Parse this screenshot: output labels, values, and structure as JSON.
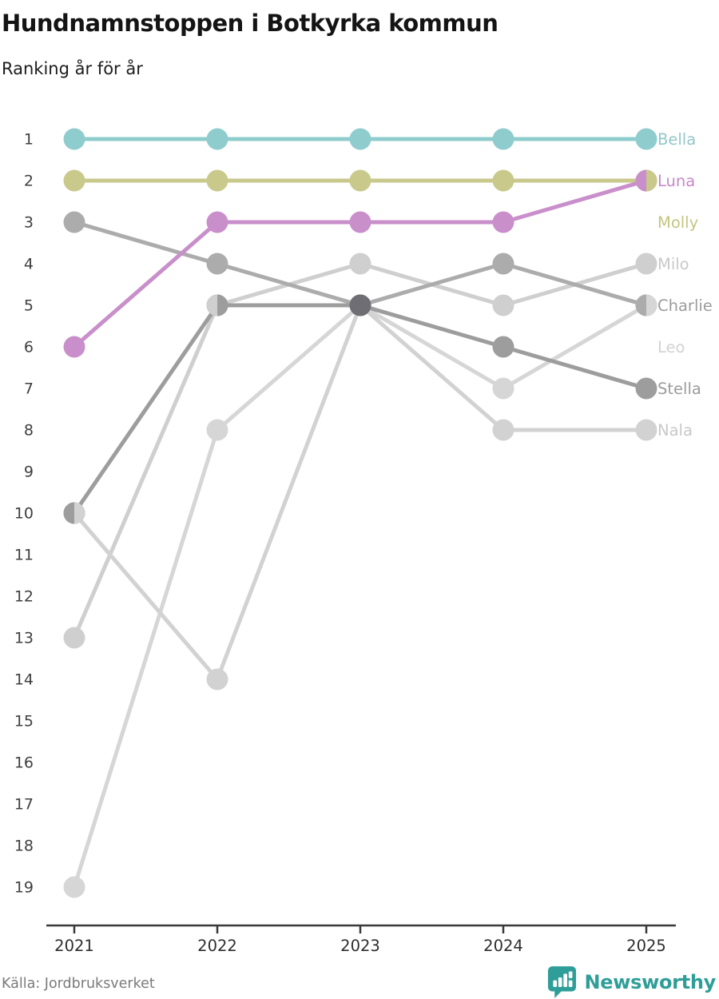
{
  "header": {
    "title": "Hundnamnstoppen i Botkyrka kommun",
    "subtitle": "Ranking år för år"
  },
  "footer": {
    "source": "Källa: Jordbruksverket",
    "brand": "Newsworthy",
    "brand_color": "#2f9e99"
  },
  "chart_data": {
    "type": "line",
    "subtype": "bump-ranking",
    "x": [
      2021,
      2022,
      2023,
      2024,
      2025
    ],
    "y_axis": {
      "ticks": [
        1,
        2,
        3,
        4,
        5,
        6,
        7,
        8,
        9,
        10,
        11,
        12,
        13,
        14,
        15,
        16,
        17,
        18,
        19
      ],
      "inverted": true,
      "range": [
        1,
        19
      ]
    },
    "axis_color": "#3a3a3a",
    "tick_label_color": "#3f3f3f",
    "year_label_color": "#2e2e2e",
    "grid": false,
    "legend_position": "right-of-last-point",
    "series": [
      {
        "name": "Milo",
        "color": "#cfcfcf",
        "label_color": "#c9c9c9",
        "label_row": 4,
        "values": [
          13,
          5,
          4,
          5,
          4
        ]
      },
      {
        "name": "Leo",
        "color": "#d6d6d6",
        "label_color": "#d2d2d2",
        "label_row": 6,
        "values": [
          19,
          8,
          5,
          7,
          5
        ]
      },
      {
        "name": "Nala",
        "color": "#d2d2d2",
        "label_color": "#c9c9c9",
        "label_row": 8,
        "values": [
          10,
          14,
          5,
          8,
          8
        ]
      },
      {
        "name": "Charlie",
        "color": "#acacac",
        "label_color": "#9c9c9c",
        "label_row": 5,
        "values": [
          3,
          4,
          5,
          4,
          5
        ]
      },
      {
        "name": "Stella",
        "color": "#9d9d9d",
        "label_color": "#9c9c9c",
        "label_row": 7,
        "values": [
          10,
          5,
          5,
          6,
          7
        ]
      },
      {
        "name": "Bella",
        "color": "#8fccce",
        "label_color": "#93c7ca",
        "label_row": 1,
        "values": [
          1,
          1,
          1,
          1,
          1
        ]
      },
      {
        "name": "Molly",
        "color": "#c9c98c",
        "label_color": "#c5c580",
        "label_row": 3,
        "values": [
          2,
          2,
          2,
          2,
          2
        ]
      },
      {
        "name": "Luna",
        "color": "#c98fcb",
        "label_color": "#c688c8",
        "label_row": 2,
        "values": [
          6,
          3,
          3,
          3,
          2
        ]
      }
    ],
    "tie_dots": [
      {
        "year": 2021,
        "rank": 10,
        "left": "#9d9d9d",
        "right": "#d2d2d2"
      },
      {
        "year": 2022,
        "rank": 5,
        "left": "#cfcfcf",
        "right": "#9d9d9d"
      },
      {
        "year": 2023,
        "rank": 5,
        "solid": "#6e6e74"
      },
      {
        "year": 2025,
        "rank": 2,
        "left": "#c98fcb",
        "right": "#c9c98c"
      },
      {
        "year": 2025,
        "rank": 5,
        "left": "#acacac",
        "right": "#d6d6d6"
      }
    ]
  }
}
